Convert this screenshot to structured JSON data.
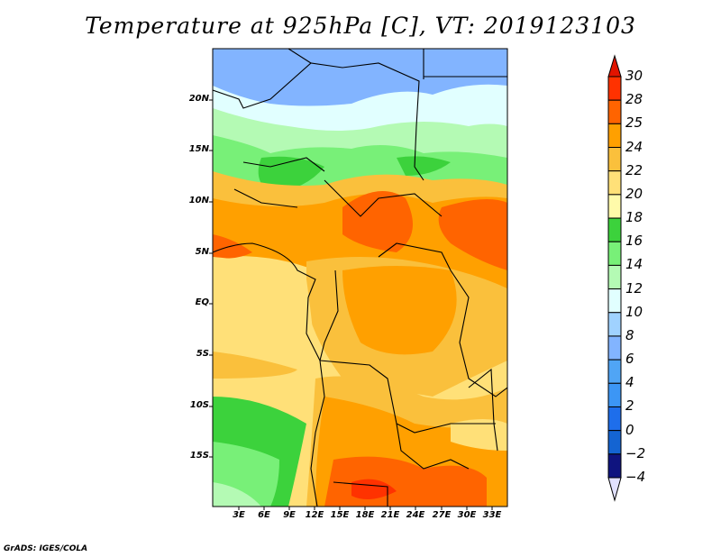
{
  "title": "Temperature at 925hPa [C], VT: 2019123103",
  "credit": "GrADS: IGES/COLA",
  "lat_labels": [
    "20N",
    "15N",
    "10N",
    "5N",
    "EQ",
    "5S",
    "10S",
    "15S"
  ],
  "lon_labels": [
    "3E",
    "6E",
    "9E",
    "12E",
    "15E",
    "18E",
    "21E",
    "24E",
    "27E",
    "30E",
    "33E"
  ],
  "colorbar": {
    "labels": [
      "30",
      "28",
      "25",
      "24",
      "22",
      "20",
      "18",
      "16",
      "14",
      "12",
      "10",
      "8",
      "6",
      "4",
      "2",
      "0",
      "−2",
      "−4"
    ],
    "colors": [
      "#ff3200",
      "#ff6400",
      "#ffa000",
      "#fac03c",
      "#ffe078",
      "#fffaaa",
      "#3cd23c",
      "#78f078",
      "#b4fab4",
      "#e1ffff",
      "#a0d2ff",
      "#82b4ff",
      "#50a5f5",
      "#3c96f5",
      "#1e6eeb",
      "#1464d2",
      "#0f147f"
    ],
    "over_color": "#e11400",
    "under_color": "#e1e1ff"
  }
}
